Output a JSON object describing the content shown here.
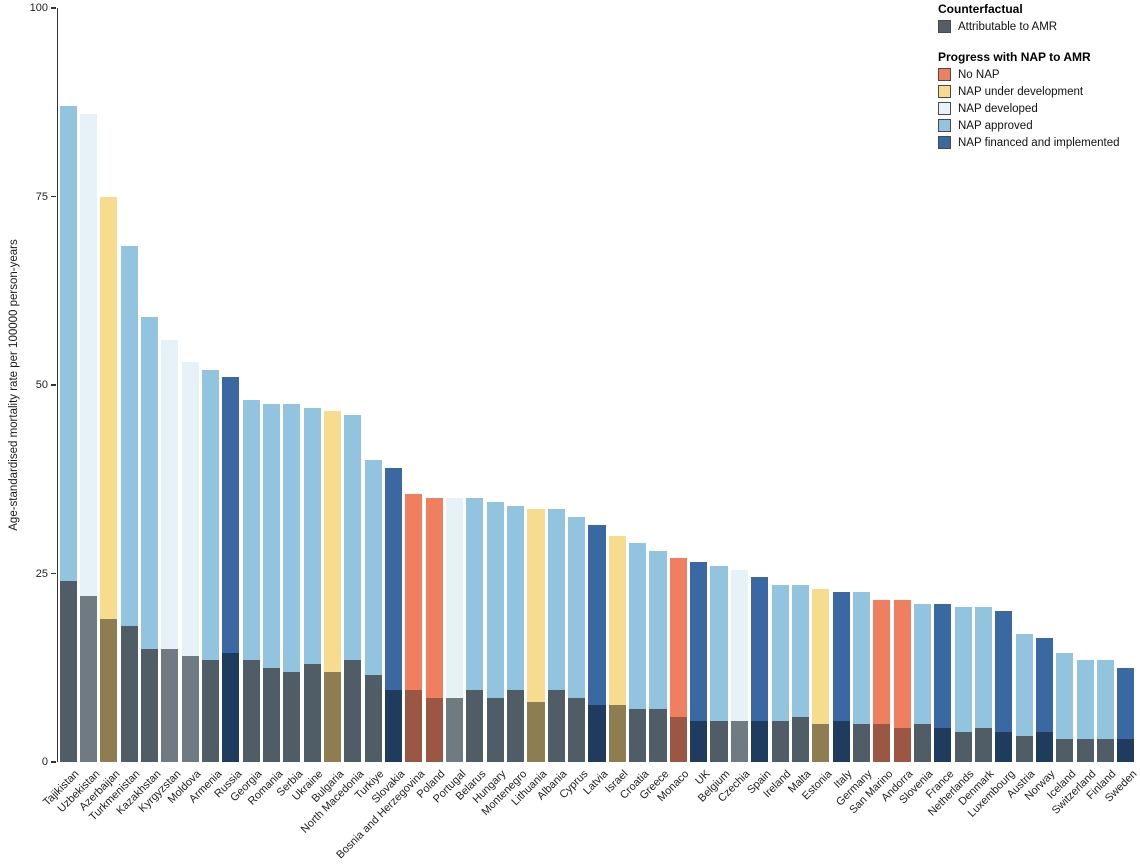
{
  "chart_data": {
    "type": "bar",
    "title": "",
    "xlabel": "",
    "ylabel": "Age-standardised mortality rate per 100000 person-years",
    "ylim": [
      0,
      100
    ],
    "yticks": [
      0,
      25,
      50,
      75,
      100
    ],
    "grid": false,
    "legend_position": "top-right",
    "legend": {
      "counterfactual_title": "Counterfactual",
      "attributable_label": "Attributable to AMR",
      "attributable_color": "#555E66",
      "nap_title": "Progress with NAP to AMR",
      "categories": [
        {
          "key": "no_nap",
          "label": "No NAP",
          "color": "#EF7F5F",
          "attr_color": "#9C5744"
        },
        {
          "key": "under_development",
          "label": "NAP under development",
          "color": "#F7DB8F",
          "attr_color": "#8F7D52"
        },
        {
          "key": "developed",
          "label": "NAP developed",
          "color": "#E6F1F8",
          "attr_color": "#707A82"
        },
        {
          "key": "approved",
          "label": "NAP approved",
          "color": "#92C4E0",
          "attr_color": "#505C66"
        },
        {
          "key": "financed",
          "label": "NAP financed and implemented",
          "color": "#3968A3",
          "attr_color": "#1F3C5E"
        }
      ]
    },
    "series_note": "total = full bar height (counterfactual); attributable = dark lower segment (attributable to AMR)",
    "countries": [
      {
        "name": "Tajikistan",
        "total": 87,
        "attributable": 24,
        "nap": "approved"
      },
      {
        "name": "Uzbekistan",
        "total": 86,
        "attributable": 22,
        "nap": "developed"
      },
      {
        "name": "Azerbaijan",
        "total": 75,
        "attributable": 19,
        "nap": "under_development"
      },
      {
        "name": "Turkmenistan",
        "total": 68.5,
        "attributable": 18,
        "nap": "approved"
      },
      {
        "name": "Kazakhstan",
        "total": 59,
        "attributable": 15,
        "nap": "approved"
      },
      {
        "name": "Kyrgyzstan",
        "total": 56,
        "attributable": 15,
        "nap": "developed"
      },
      {
        "name": "Moldova",
        "total": 53,
        "attributable": 14,
        "nap": "developed"
      },
      {
        "name": "Armenia",
        "total": 52,
        "attributable": 13.5,
        "nap": "approved"
      },
      {
        "name": "Russia",
        "total": 51,
        "attributable": 14.5,
        "nap": "financed"
      },
      {
        "name": "Georgia",
        "total": 48,
        "attributable": 13.5,
        "nap": "approved"
      },
      {
        "name": "Romania",
        "total": 47.5,
        "attributable": 12.5,
        "nap": "approved"
      },
      {
        "name": "Serbia",
        "total": 47.5,
        "attributable": 12,
        "nap": "approved"
      },
      {
        "name": "Ukraine",
        "total": 47,
        "attributable": 13,
        "nap": "approved"
      },
      {
        "name": "Bulgaria",
        "total": 46.5,
        "attributable": 12,
        "nap": "under_development"
      },
      {
        "name": "North Macedonia",
        "total": 46,
        "attributable": 13.5,
        "nap": "approved"
      },
      {
        "name": "Turkiye",
        "total": 40,
        "attributable": 11.5,
        "nap": "approved"
      },
      {
        "name": "Slovakia",
        "total": 39,
        "attributable": 9.5,
        "nap": "financed"
      },
      {
        "name": "Bosnia and Herzegovina",
        "total": 35.5,
        "attributable": 9.5,
        "nap": "no_nap"
      },
      {
        "name": "Poland",
        "total": 35,
        "attributable": 8.5,
        "nap": "no_nap"
      },
      {
        "name": "Portugal",
        "total": 35,
        "attributable": 8.5,
        "nap": "developed"
      },
      {
        "name": "Belarus",
        "total": 35,
        "attributable": 9.5,
        "nap": "approved"
      },
      {
        "name": "Hungary",
        "total": 34.5,
        "attributable": 8.5,
        "nap": "approved"
      },
      {
        "name": "Montenegro",
        "total": 34,
        "attributable": 9.5,
        "nap": "approved"
      },
      {
        "name": "Lithuania",
        "total": 33.5,
        "attributable": 8,
        "nap": "under_development"
      },
      {
        "name": "Albania",
        "total": 33.5,
        "attributable": 9.5,
        "nap": "approved"
      },
      {
        "name": "Cyprus",
        "total": 32.5,
        "attributable": 8.5,
        "nap": "approved"
      },
      {
        "name": "Latvia",
        "total": 31.5,
        "attributable": 7.5,
        "nap": "financed"
      },
      {
        "name": "Israel",
        "total": 30,
        "attributable": 7.5,
        "nap": "under_development"
      },
      {
        "name": "Croatia",
        "total": 29,
        "attributable": 7,
        "nap": "approved"
      },
      {
        "name": "Greece",
        "total": 28,
        "attributable": 7,
        "nap": "approved"
      },
      {
        "name": "Monaco",
        "total": 27,
        "attributable": 6,
        "nap": "no_nap"
      },
      {
        "name": "UK",
        "total": 26.5,
        "attributable": 5.5,
        "nap": "financed"
      },
      {
        "name": "Belgium",
        "total": 26,
        "attributable": 5.5,
        "nap": "approved"
      },
      {
        "name": "Czechia",
        "total": 25.5,
        "attributable": 5.5,
        "nap": "developed"
      },
      {
        "name": "Spain",
        "total": 24.5,
        "attributable": 5.5,
        "nap": "financed"
      },
      {
        "name": "Ireland",
        "total": 23.5,
        "attributable": 5.5,
        "nap": "approved"
      },
      {
        "name": "Malta",
        "total": 23.5,
        "attributable": 6,
        "nap": "approved"
      },
      {
        "name": "Estonia",
        "total": 23,
        "attributable": 5,
        "nap": "under_development"
      },
      {
        "name": "Italy",
        "total": 22.5,
        "attributable": 5.5,
        "nap": "financed"
      },
      {
        "name": "Germany",
        "total": 22.5,
        "attributable": 5,
        "nap": "approved"
      },
      {
        "name": "San Marino",
        "total": 21.5,
        "attributable": 5,
        "nap": "no_nap"
      },
      {
        "name": "Andorra",
        "total": 21.5,
        "attributable": 4.5,
        "nap": "no_nap"
      },
      {
        "name": "Slovenia",
        "total": 21,
        "attributable": 5,
        "nap": "approved"
      },
      {
        "name": "France",
        "total": 21,
        "attributable": 4.5,
        "nap": "financed"
      },
      {
        "name": "Netherlands",
        "total": 20.5,
        "attributable": 4,
        "nap": "approved"
      },
      {
        "name": "Denmark",
        "total": 20.5,
        "attributable": 4.5,
        "nap": "approved"
      },
      {
        "name": "Luxembourg",
        "total": 20,
        "attributable": 4,
        "nap": "financed"
      },
      {
        "name": "Austria",
        "total": 17,
        "attributable": 3.5,
        "nap": "approved"
      },
      {
        "name": "Norway",
        "total": 16.5,
        "attributable": 4,
        "nap": "financed"
      },
      {
        "name": "Iceland",
        "total": 14.5,
        "attributable": 3,
        "nap": "approved"
      },
      {
        "name": "Switzerland",
        "total": 13.5,
        "attributable": 3,
        "nap": "approved"
      },
      {
        "name": "Finland",
        "total": 13.5,
        "attributable": 3,
        "nap": "approved"
      },
      {
        "name": "Sweden",
        "total": 12.5,
        "attributable": 3,
        "nap": "financed"
      }
    ]
  }
}
